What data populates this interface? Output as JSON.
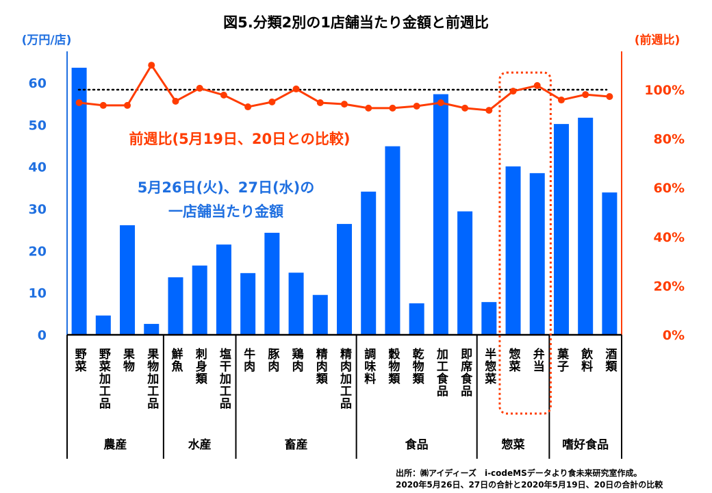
{
  "chart_data": {
    "type": "bar",
    "title": "図5.分類2別の1店舗当たり金額と前週比",
    "ylabel": "(万円/店)",
    "y2label": "(前週比)",
    "ylim": [
      0,
      60
    ],
    "y2lim": [
      0,
      100
    ],
    "yticks": [
      "0",
      "10",
      "20",
      "30",
      "40",
      "50",
      "60"
    ],
    "y2ticks": [
      "0%",
      "20%",
      "40%",
      "60%",
      "80%",
      "100%"
    ],
    "categories": [
      "野菜",
      "野菜加工品",
      "果物",
      "果物加工品",
      "鮮魚",
      "刺身類",
      "塩干加工品",
      "牛肉",
      "豚肉",
      "鶏肉",
      "精肉類",
      "精肉加工品",
      "調味料",
      "穀物類",
      "乾物類",
      "加工食品",
      "即席食品",
      "半惣菜",
      "惣菜",
      "弁当",
      "菓子",
      "飲料",
      "酒類"
    ],
    "groups": [
      {
        "name": "農産",
        "count": 4
      },
      {
        "name": "水産",
        "count": 3
      },
      {
        "name": "畜産",
        "count": 5
      },
      {
        "name": "食品",
        "count": 5
      },
      {
        "name": "惣菜",
        "count": 3
      },
      {
        "name": "嗜好食品",
        "count": 3
      }
    ],
    "series": [
      {
        "name": "5月26日(火)、27日(水)の一店舗当たり金額",
        "axis": "left",
        "type": "bar",
        "color": "#0066ff",
        "values": [
          63.6,
          4.6,
          26.1,
          2.6,
          13.7,
          16.5,
          21.5,
          14.7,
          24.3,
          14.8,
          9.5,
          26.4,
          34.1,
          44.9,
          7.5,
          57.3,
          29.4,
          7.8,
          40.1,
          38.5,
          50.2,
          51.7,
          33.9
        ]
      },
      {
        "name": "前週比(5月19日、20日との比較)",
        "axis": "right",
        "type": "line",
        "color": "#ff3c00",
        "values": [
          94.7,
          93.6,
          93.6,
          110,
          95.3,
          100.6,
          97.8,
          93,
          95,
          100.3,
          94.7,
          94.1,
          92.5,
          92.5,
          93.3,
          94.7,
          92.5,
          91.6,
          99.4,
          101.7,
          95.8,
          98,
          97.2
        ]
      }
    ],
    "reference_line": 100,
    "highlight": [
      "惣菜",
      "弁当"
    ],
    "legend_bar_line1": "5月26日(火)、27日(水)の",
    "legend_bar_line2": "一店舗当たり金額",
    "legend_line": "前週比(5月19日、20日との比較)",
    "source_line1": "出所：㈱アイディーズ　i-codeMSデータより食未来研究室作成。",
    "source_line2": "2020年5月26日、27日の合計と2020年5月19日、20日の合計の比較"
  }
}
